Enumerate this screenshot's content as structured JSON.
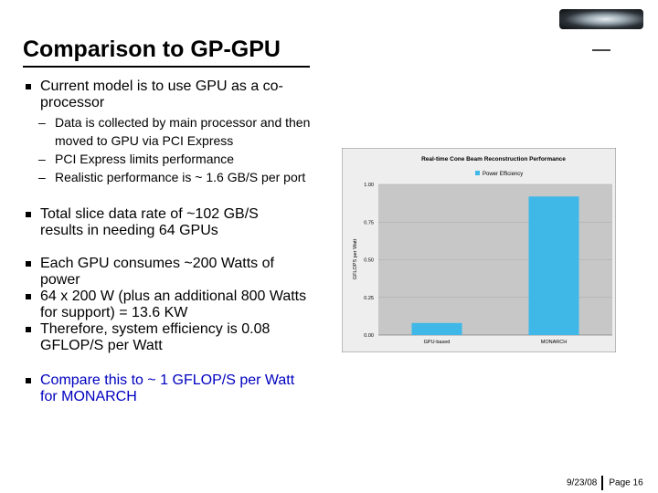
{
  "slide": {
    "title": "Comparison to GP-GPU",
    "bullets": [
      {
        "text": "Current model is to use GPU as a co-processor",
        "subs": [
          "Data is collected by main processor and then moved to GPU via PCI Express",
          "PCI Express limits performance",
          "Realistic performance is ~ 1.6 GB/S per port"
        ]
      },
      {
        "text": "Total slice data rate of ~102 GB/S results in needing 64 GPUs"
      },
      {
        "text": "Each GPU consumes ~200 Watts of power"
      },
      {
        "text": "64 x 200 W (plus an additional 800 Watts for support) = 13.6 KW"
      },
      {
        "text": "Therefore, system efficiency is 0.08 GFLOP/S per Watt"
      },
      {
        "text": "Compare this to ~ 1 GFLOP/S per Watt for MONARCH"
      }
    ],
    "footer": {
      "date": "9/23/08",
      "page": "Page 16"
    }
  },
  "chart_data": {
    "type": "bar",
    "title": "Real-time Cone Beam Reconstruction Performance",
    "categories": [
      "GPU-based",
      "MONARCH"
    ],
    "series": [
      {
        "name": "Power Efficiency",
        "values": [
          0.08,
          0.92
        ]
      }
    ],
    "ylabel": "GFLOPS per Watt",
    "xlabel": "",
    "ylim": [
      0,
      1.0
    ],
    "yticks": [
      "0.00",
      "0.25",
      "0.50",
      "0.75",
      "1.00"
    ],
    "legend": "top-center",
    "colors": {
      "bar": "#3fb8e8",
      "plot_bg": "#c7c7c7",
      "frame_bg": "#eeeeee"
    }
  }
}
